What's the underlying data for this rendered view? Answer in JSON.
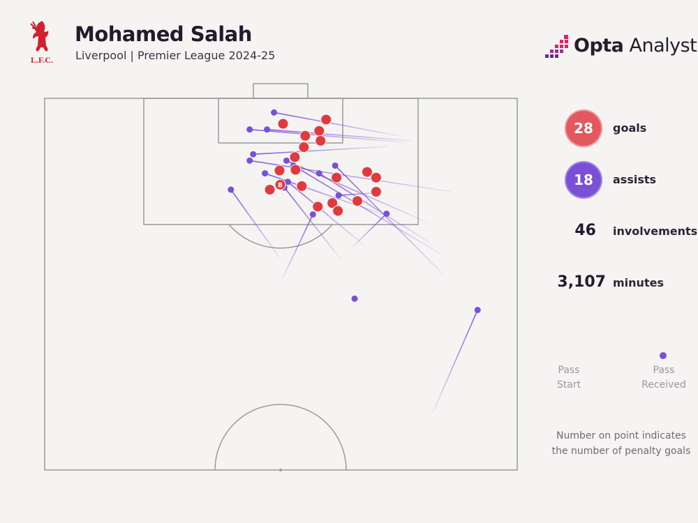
{
  "header": {
    "title": "Mohamed Salah",
    "subtitle": "Liverpool | Premier League 2024-25",
    "club_crest_text": "L.F.C.",
    "brand_part1": "Opta",
    "brand_part2": " Analyst"
  },
  "stats": {
    "goals_value": "28",
    "goals_label": "goals",
    "assists_value": "18",
    "assists_label": "assists",
    "involvements_value": "46",
    "involvements_label": "involvements",
    "minutes_value": "3,107",
    "minutes_label": "minutes"
  },
  "legend": {
    "start_label": "Pass\nStart",
    "end_label": "Pass\nReceived",
    "note": "Number on point indicates the number of penalty goals"
  },
  "colors": {
    "goal": "#e03a3e",
    "assist": "#7a50d6",
    "pitch_line": "#9a9a9a"
  },
  "chart_data": {
    "type": "scatter",
    "description_units": "pitch coordinates: x = 0..68 across pitch width (left to right), y = 0..52.5 distance from goal line downward",
    "goals": [
      {
        "x": 40.5,
        "y": 3.0
      },
      {
        "x": 34.3,
        "y": 3.6
      },
      {
        "x": 39.5,
        "y": 4.6
      },
      {
        "x": 37.5,
        "y": 5.3
      },
      {
        "x": 39.7,
        "y": 6.0
      },
      {
        "x": 37.3,
        "y": 6.9
      },
      {
        "x": 36.0,
        "y": 8.3
      },
      {
        "x": 33.8,
        "y": 10.2
      },
      {
        "x": 36.1,
        "y": 10.1
      },
      {
        "x": 46.4,
        "y": 10.4
      },
      {
        "x": 42.0,
        "y": 11.2
      },
      {
        "x": 47.7,
        "y": 11.2
      },
      {
        "x": 33.9,
        "y": 12.2,
        "label": "8"
      },
      {
        "x": 32.4,
        "y": 12.9
      },
      {
        "x": 37.0,
        "y": 12.4
      },
      {
        "x": 47.7,
        "y": 13.2
      },
      {
        "x": 45.0,
        "y": 14.5
      },
      {
        "x": 41.4,
        "y": 14.8
      },
      {
        "x": 39.3,
        "y": 15.3
      },
      {
        "x": 42.2,
        "y": 15.9
      }
    ],
    "assists": [
      {
        "start": [
          51.0,
          5.3
        ],
        "end": [
          33.0,
          2.0
        ]
      },
      {
        "start": [
          51.5,
          6.2
        ],
        "end": [
          29.5,
          4.4
        ]
      },
      {
        "start": [
          53.0,
          6.0
        ],
        "end": [
          32.0,
          4.4
        ]
      },
      {
        "start": [
          49.5,
          6.8
        ],
        "end": [
          30.0,
          7.9
        ]
      },
      {
        "start": [
          58.5,
          13.2
        ],
        "end": [
          29.5,
          8.8
        ]
      },
      {
        "start": [
          55.0,
          17.5
        ],
        "end": [
          34.8,
          8.8
        ]
      },
      {
        "start": [
          57.0,
          22.0
        ],
        "end": [
          35.8,
          9.5
        ]
      },
      {
        "start": [
          57.5,
          25.0
        ],
        "end": [
          41.8,
          9.5
        ]
      },
      {
        "start": [
          49.0,
          16.5
        ],
        "end": [
          31.7,
          10.6
        ]
      },
      {
        "start": [
          55.3,
          20.3
        ],
        "end": [
          39.5,
          10.6
        ]
      },
      {
        "start": [
          46.0,
          20.8
        ],
        "end": [
          35.0,
          11.8
        ]
      },
      {
        "start": [
          42.5,
          22.6
        ],
        "end": [
          34.5,
          12.6
        ]
      },
      {
        "start": [
          48.5,
          13.3
        ],
        "end": [
          42.3,
          13.7
        ]
      },
      {
        "start": [
          33.8,
          22.5
        ],
        "end": [
          26.8,
          12.9
        ]
      },
      {
        "start": [
          34.2,
          25.5
        ],
        "end": [
          38.6,
          16.4
        ]
      },
      {
        "start": [
          44.3,
          21.0
        ],
        "end": [
          49.2,
          16.3
        ]
      },
      {
        "start": [
          55.8,
          44.5
        ],
        "end": [
          62.3,
          29.9
        ]
      },
      {
        "end": [
          44.6,
          28.3
        ]
      }
    ]
  }
}
